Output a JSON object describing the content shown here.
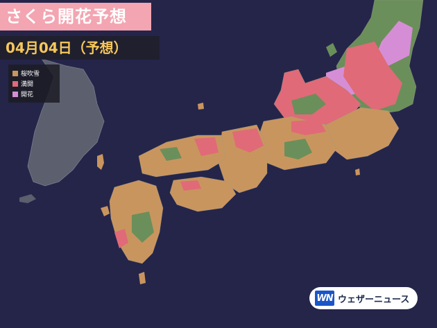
{
  "title": "さくら開花予想",
  "date_label": "04月04日（予想）",
  "legend": [
    {
      "label": "桜吹雪",
      "color": "#c9955e"
    },
    {
      "label": "満開",
      "color": "#e06a78"
    },
    {
      "label": "開花",
      "color": "#d58ed6"
    }
  ],
  "brand": {
    "logo": "WN",
    "name": "ウェザーニュース"
  },
  "colors": {
    "sea": "#25254a",
    "korea_land": "#5b5f6e",
    "sakura_fubuki": "#c9955e",
    "mankai": "#e06a78",
    "kaika": "#d58ed6",
    "not_bloomed": "#6b8f5a",
    "banner_pink": "#f3a5b1",
    "date_text": "#f7c75a"
  }
}
